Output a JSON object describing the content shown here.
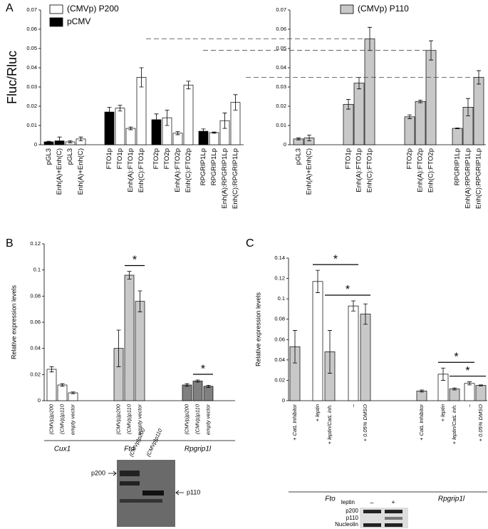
{
  "chart_data": [
    {
      "type": "bar",
      "panel": "A",
      "ylabel": "Fluc/Rluc",
      "ylim": [
        0,
        0.07
      ],
      "yticks": [
        0,
        0.01,
        0.02,
        0.03,
        0.04,
        0.05,
        0.06,
        0.07
      ],
      "categories": [
        "pGL3",
        "Enh(A)+Enh(C)",
        "pGL3",
        "Enh(A)+Enh(C)",
        "FTO1p",
        "FTO1p",
        "Enh(A):FTO1p",
        "Enh(C):FTO1p",
        "FTO2p",
        "FTO2p",
        "Enh(A):FTO2p",
        "Enh(C):FTO2p",
        "RPGRIP1Lp",
        "RPGRIP1Lp",
        "Enh(A):RPGRIP1Lp",
        "Enh(C):RPGRIP1Lp"
      ],
      "series": [
        {
          "name": "(CMVp) P200",
          "color": "#ffffff",
          "values": [
            null,
            null,
            0.0015,
            0.003,
            null,
            0.019,
            0.0085,
            0.035,
            null,
            0.014,
            0.006,
            0.031,
            null,
            0.0063,
            0.0125,
            0.022
          ],
          "errors": [
            null,
            null,
            0.0005,
            0.001,
            null,
            0.0015,
            0.0007,
            0.005,
            null,
            0.004,
            0.0008,
            0.002,
            null,
            0.0003,
            0.004,
            0.004
          ]
        },
        {
          "name": "pCMV",
          "color": "#000000",
          "values": [
            0.0015,
            0.002,
            null,
            null,
            0.017,
            null,
            null,
            null,
            0.013,
            null,
            null,
            null,
            0.007,
            null,
            null,
            null
          ],
          "errors": [
            0.0003,
            0.002,
            null,
            null,
            0.0025,
            null,
            null,
            null,
            0.003,
            null,
            null,
            null,
            0.0012,
            null,
            null,
            null
          ]
        }
      ]
    },
    {
      "type": "bar",
      "ylim": [
        0,
        0.07
      ],
      "yticks": [
        0,
        0.01,
        0.02,
        0.03,
        0.04,
        0.05,
        0.06,
        0.07
      ],
      "categories": [
        "pGL3",
        "Enh(A)+Enh(C)",
        "FTO1p",
        "Enh(A):FTO1p",
        "Enh(C):FTO1p",
        "FTO2p",
        "Enh(A):FTO2p",
        "Enh(C):FTO2p",
        "RPGRIP1Lp",
        "Enh(A):RPGRIP1Lp",
        "Enh(C):RPGRIP1Lp"
      ],
      "series": [
        {
          "name": "(CMVp) P110",
          "color": "#c8c8c8",
          "values": [
            0.003,
            0.0035,
            0.021,
            0.032,
            0.055,
            0.0145,
            0.0225,
            0.049,
            0.0085,
            0.0195,
            0.035
          ],
          "errors": [
            0.0005,
            0.0015,
            0.0025,
            0.003,
            0.006,
            0.001,
            0.0007,
            0.005,
            0.0002,
            0.0045,
            0.0035
          ]
        }
      ]
    },
    {
      "type": "bar",
      "panel": "B",
      "ylabel": "Relative expression levels",
      "ylim": [
        0,
        0.12
      ],
      "yticks": [
        0,
        0.02,
        0.04,
        0.06,
        0.08,
        0.1,
        0.12
      ],
      "groups": [
        "Cux1",
        "Fto",
        "Rpgrip1l"
      ],
      "categories": [
        "(CMVp)p200",
        "(CMVp)p110",
        "empty vector",
        "(CMVp)p200",
        "(CMVp)p110",
        "empty vector",
        "(CMVp)p200",
        "(CMVp)p110",
        "empty vector"
      ],
      "values": [
        0.024,
        0.012,
        0.006,
        0.04,
        0.096,
        0.076,
        0.012,
        0.015,
        0.011
      ],
      "errors": [
        0.002,
        0.001,
        0.0007,
        0.014,
        0.003,
        0.008,
        0.001,
        0.0008,
        0.0008
      ],
      "colors": [
        "#ffffff",
        "#ffffff",
        "#ffffff",
        "#c8c8c8",
        "#c8c8c8",
        "#c8c8c8",
        "#808080",
        "#808080",
        "#808080"
      ],
      "annotations": [
        {
          "text": "*",
          "from": 4,
          "to": 5
        },
        {
          "text": "*",
          "from": 7,
          "to": 8
        }
      ]
    },
    {
      "type": "bar",
      "panel": "C",
      "ylabel": "Relative expression levels",
      "ylim": [
        0,
        0.14
      ],
      "yticks": [
        0,
        0.02,
        0.04,
        0.06,
        0.08,
        0.1,
        0.12,
        0.14
      ],
      "groups": [
        "Fto",
        "Rpgrip1l"
      ],
      "categories": [
        "+ CatL Inhibitor",
        "+ leptin",
        "+ leptin/CatL inh.",
        "–",
        "+ 0.05% DMSO",
        "+ CatL Inhibitor",
        "+ leptin",
        "+ leptin/CatL inh.",
        "–",
        "+ 0.05% DMSO"
      ],
      "values": [
        0.053,
        0.117,
        0.048,
        0.093,
        0.085,
        0.0095,
        0.026,
        0.0115,
        0.017,
        0.015
      ],
      "errors": [
        0.016,
        0.011,
        0.021,
        0.005,
        0.01,
        0.001,
        0.006,
        0.001,
        0.0015,
        0.0005
      ],
      "colors": [
        "#c8c8c8",
        "#ffffff",
        "#c8c8c8",
        "#ffffff",
        "#c8c8c8",
        "#c8c8c8",
        "#ffffff",
        "#c8c8c8",
        "#ffffff",
        "#c8c8c8"
      ],
      "annotations": [
        {
          "text": "*",
          "from": 1,
          "to": 3
        },
        {
          "text": "*",
          "from": 2,
          "to": 4
        },
        {
          "text": "*",
          "from": 6,
          "to": 8
        },
        {
          "text": "*",
          "from": 7,
          "to": 9
        }
      ]
    }
  ],
  "blots": [
    {
      "lanes": [
        "(CMVp)p200",
        "(CMVp)p110"
      ],
      "bands": [
        "p200",
        "p110"
      ]
    },
    {
      "header": "leptin",
      "lanes": [
        "–",
        "+"
      ],
      "bands": [
        "p200",
        "p110",
        "Nucleolin"
      ]
    }
  ]
}
